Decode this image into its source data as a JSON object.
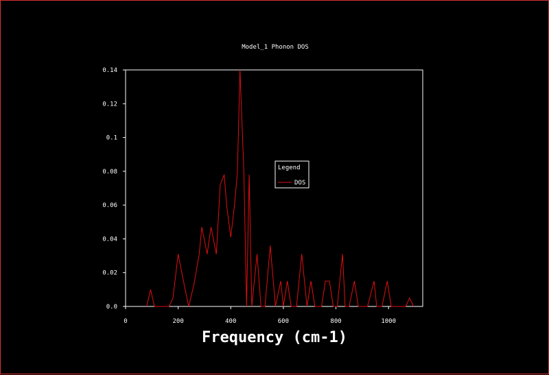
{
  "chart_data": {
    "type": "line",
    "title": "Model_1 Phonon DOS",
    "xlabel": "Frequency (cm-1)",
    "ylabel": "",
    "xlim": [
      0,
      1130
    ],
    "ylim": [
      0,
      0.14
    ],
    "x_ticks": [
      0,
      200,
      400,
      600,
      800,
      1000
    ],
    "y_ticks": [
      0.0,
      0.02,
      0.04,
      0.06,
      0.08,
      0.1,
      0.12,
      0.14
    ],
    "x_tick_labels": [
      "0",
      "200",
      "400",
      "600",
      "800",
      "1000"
    ],
    "y_tick_labels": [
      "0.0",
      "0.02",
      "0.04",
      "0.06",
      "0.08",
      "0.1",
      "0.12",
      "0.14"
    ],
    "grid": false,
    "legend": {
      "title": "Legend",
      "position": "center"
    },
    "series": [
      {
        "name": "DOS",
        "color": "#e01010",
        "x": [
          80,
          95,
          110,
          165,
          180,
          200,
          220,
          240,
          260,
          280,
          290,
          310,
          325,
          345,
          360,
          375,
          385,
          400,
          415,
          425,
          435,
          450,
          460,
          470,
          480,
          500,
          515,
          530,
          550,
          570,
          590,
          600,
          615,
          630,
          650,
          670,
          690,
          705,
          720,
          745,
          760,
          775,
          790,
          805,
          825,
          835,
          850,
          870,
          885,
          900,
          920,
          945,
          955,
          975,
          995,
          1010,
          1025,
          1045,
          1065,
          1080,
          1095
        ],
        "y": [
          0.0,
          0.01,
          0.0,
          0.0,
          0.005,
          0.031,
          0.015,
          0.0,
          0.013,
          0.031,
          0.047,
          0.031,
          0.047,
          0.031,
          0.072,
          0.078,
          0.059,
          0.041,
          0.061,
          0.079,
          0.14,
          0.079,
          0.0,
          0.078,
          0.0,
          0.031,
          0.0,
          0.0,
          0.036,
          0.0,
          0.015,
          0.0,
          0.015,
          0.0,
          0.0,
          0.031,
          0.0,
          0.015,
          0.0,
          0.0,
          0.015,
          0.015,
          0.0,
          0.0,
          0.031,
          0.0,
          0.0,
          0.015,
          0.0,
          0.0,
          0.0,
          0.015,
          0.0,
          0.0,
          0.015,
          0.0,
          0.0,
          0.0,
          0.0,
          0.005,
          0.0
        ]
      }
    ]
  }
}
